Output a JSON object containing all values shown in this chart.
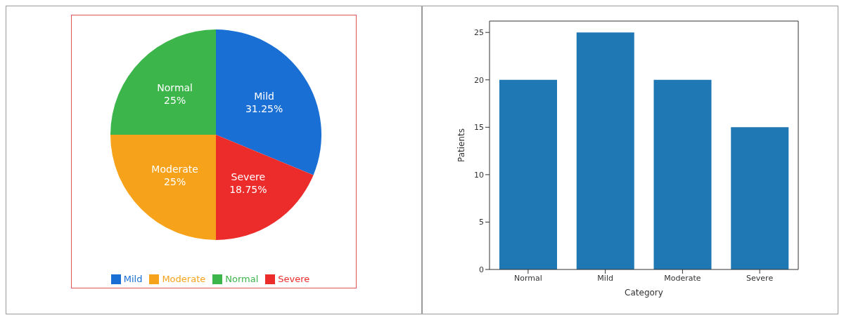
{
  "chart_data": [
    {
      "type": "pie",
      "categories": [
        "Normal",
        "Mild",
        "Severe",
        "Moderate"
      ],
      "values": [
        25,
        31.25,
        18.75,
        25
      ],
      "colors": [
        "#3cb54a",
        "#1a6fd4",
        "#ec2b2b",
        "#f7a21b"
      ],
      "value_labels": [
        "25%",
        "31.25%",
        "18.75%",
        "25%"
      ],
      "legend": "bottom"
    },
    {
      "type": "bar",
      "categories": [
        "Normal",
        "Mild",
        "Moderate",
        "Severe"
      ],
      "values": [
        20,
        25,
        20,
        15
      ],
      "color": "#1f77b4",
      "xlabel": "Category",
      "ylabel": "Patients",
      "ylim": [
        0,
        26.2
      ],
      "yticks": [
        0,
        5,
        10,
        15,
        20,
        25
      ],
      "grid": false
    }
  ]
}
